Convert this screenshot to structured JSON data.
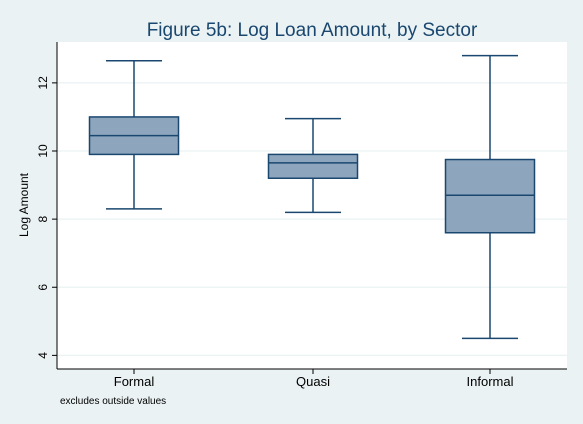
{
  "chart_data": {
    "type": "box",
    "title": "Figure 5b: Log Loan Amount, by Sector",
    "xlabel": "",
    "ylabel": "Log Amount",
    "ylim": [
      3.6,
      13.2
    ],
    "yticks": [
      4,
      6,
      8,
      10,
      12
    ],
    "grid": true,
    "note": "excludes outside values",
    "categories": [
      "Formal",
      "Quasi",
      "Informal"
    ],
    "boxes": [
      {
        "category": "Formal",
        "whisker_low": 8.3,
        "q1": 9.9,
        "median": 10.45,
        "q3": 11.0,
        "whisker_high": 12.65
      },
      {
        "category": "Quasi",
        "whisker_low": 8.2,
        "q1": 9.2,
        "median": 9.65,
        "q3": 9.9,
        "whisker_high": 10.95
      },
      {
        "category": "Informal",
        "whisker_low": 4.5,
        "q1": 7.6,
        "median": 8.7,
        "q3": 9.75,
        "whisker_high": 12.8
      }
    ],
    "colors": {
      "background": "#eaf2f3",
      "plot_background": "#ffffff",
      "grid": "#eaf2f3",
      "box_fill": "#8ea6bd",
      "box_stroke": "#1a476f",
      "title": "#1a476f",
      "text": "#000000"
    }
  }
}
